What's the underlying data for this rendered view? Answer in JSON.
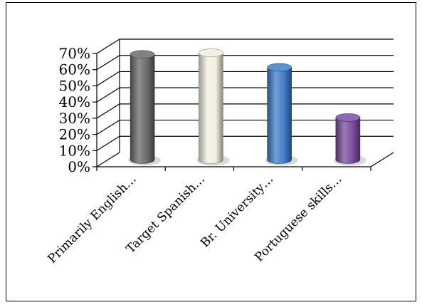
{
  "chart_data": {
    "type": "bar",
    "style": "3d-cylinder",
    "title": "",
    "xlabel": "",
    "ylabel": "",
    "categories": [
      "Primarily English…",
      "Target Spanish…",
      "Br. University…",
      "Portuguese skills…"
    ],
    "values": [
      0.65,
      0.66,
      0.57,
      0.26
    ],
    "colors": [
      "#6b6b6b",
      "#f2f0e0",
      "#3f7fc8",
      "#7a4ea0"
    ],
    "ylim": [
      0,
      0.7
    ],
    "y_ticks": [
      "0%",
      "10%",
      "20%",
      "30%",
      "40%",
      "50%",
      "60%",
      "70%"
    ],
    "grid": true,
    "legend": "none"
  }
}
